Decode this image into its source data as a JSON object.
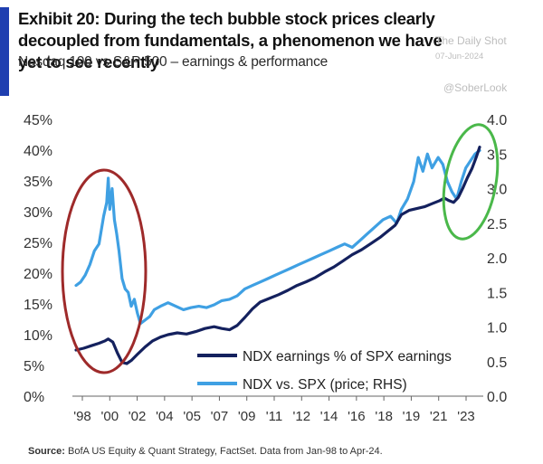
{
  "header": {
    "title": "Exhibit 20: During the tech bubble stock prices clearly decoupled from fundamentals, a phenomenon we have yet to see recently",
    "subtitle": "Nasdaq 100 vs S&P 500 – earnings & performance"
  },
  "watermark": {
    "site": "The Daily Shot",
    "date": "07-Jun-2024",
    "handle": "@SoberLook"
  },
  "source": {
    "label": "Source:",
    "text": "BofA US Equity & Quant Strategy, FactSet. Data from Jan-98 to Apr-24."
  },
  "colors": {
    "accent": "#1f3fb0",
    "earnings": "#14215e",
    "price": "#3fa0e3",
    "circle_left": "#9e2a2a",
    "circle_right": "#4ab84a"
  },
  "chart_data": {
    "type": "line",
    "x_ticks": [
      "'98",
      "'00",
      "'02",
      "'04",
      "'05",
      "'07",
      "'09",
      "'11",
      "'12",
      "'14",
      "'16",
      "'18",
      "'19",
      "'21",
      "'23"
    ],
    "y_left_ticks": [
      "0%",
      "5%",
      "10%",
      "15%",
      "20%",
      "25%",
      "30%",
      "35%",
      "40%",
      "45%"
    ],
    "y_right_ticks": [
      "0.0",
      "0.5",
      "1.0",
      "1.5",
      "2.0",
      "2.5",
      "3.0",
      "3.5",
      "4.0"
    ],
    "ylim_left": [
      0,
      45
    ],
    "ylim_right": [
      0,
      4.0
    ],
    "xlim": [
      1998.0,
      2024.3
    ],
    "legend_position": "bottom-right",
    "annotations": [
      "red ellipse around 1998-2002 bubble",
      "green ellipse around 2023-2024"
    ],
    "series": [
      {
        "name": "NDX earnings % of SPX earnings",
        "axis": "left",
        "points": [
          [
            1998.0,
            7.5
          ],
          [
            1998.5,
            7.8
          ],
          [
            1999.0,
            8.2
          ],
          [
            1999.5,
            8.6
          ],
          [
            1999.9,
            9.0
          ],
          [
            2000.1,
            9.3
          ],
          [
            2000.4,
            8.8
          ],
          [
            2000.7,
            7.0
          ],
          [
            2001.0,
            5.5
          ],
          [
            2001.3,
            5.3
          ],
          [
            2001.6,
            5.8
          ],
          [
            2002.0,
            6.8
          ],
          [
            2002.5,
            8.0
          ],
          [
            2003.0,
            9.0
          ],
          [
            2003.5,
            9.6
          ],
          [
            2004.0,
            10.0
          ],
          [
            2004.6,
            10.3
          ],
          [
            2005.2,
            10.1
          ],
          [
            2005.8,
            10.5
          ],
          [
            2006.4,
            11.0
          ],
          [
            2007.0,
            11.3
          ],
          [
            2007.5,
            11.0
          ],
          [
            2008.0,
            10.8
          ],
          [
            2008.5,
            11.5
          ],
          [
            2009.0,
            12.8
          ],
          [
            2009.5,
            14.2
          ],
          [
            2010.0,
            15.3
          ],
          [
            2010.6,
            15.9
          ],
          [
            2011.2,
            16.5
          ],
          [
            2011.8,
            17.2
          ],
          [
            2012.4,
            18.0
          ],
          [
            2013.0,
            18.6
          ],
          [
            2013.6,
            19.3
          ],
          [
            2014.2,
            20.2
          ],
          [
            2014.8,
            21.0
          ],
          [
            2015.4,
            22.0
          ],
          [
            2016.0,
            23.0
          ],
          [
            2016.6,
            23.8
          ],
          [
            2017.2,
            24.8
          ],
          [
            2017.8,
            25.8
          ],
          [
            2018.3,
            26.8
          ],
          [
            2018.8,
            27.8
          ],
          [
            2019.2,
            29.5
          ],
          [
            2019.7,
            30.2
          ],
          [
            2020.2,
            30.5
          ],
          [
            2020.7,
            30.8
          ],
          [
            2021.2,
            31.3
          ],
          [
            2021.7,
            31.8
          ],
          [
            2022.0,
            32.2
          ],
          [
            2022.3,
            31.8
          ],
          [
            2022.6,
            31.5
          ],
          [
            2022.9,
            32.3
          ],
          [
            2023.2,
            33.8
          ],
          [
            2023.5,
            35.5
          ],
          [
            2023.8,
            37.0
          ],
          [
            2024.1,
            39.0
          ],
          [
            2024.3,
            40.5
          ]
        ]
      },
      {
        "name": "NDX vs. SPX (price; RHS)",
        "axis": "right",
        "points": [
          [
            1998.0,
            1.6
          ],
          [
            1998.3,
            1.65
          ],
          [
            1998.6,
            1.75
          ],
          [
            1998.9,
            1.9
          ],
          [
            1999.2,
            2.1
          ],
          [
            1999.5,
            2.2
          ],
          [
            1999.8,
            2.6
          ],
          [
            2000.0,
            2.8
          ],
          [
            2000.1,
            3.15
          ],
          [
            2000.2,
            2.7
          ],
          [
            2000.35,
            3.0
          ],
          [
            2000.5,
            2.55
          ],
          [
            2000.65,
            2.35
          ],
          [
            2000.8,
            2.1
          ],
          [
            2001.0,
            1.7
          ],
          [
            2001.2,
            1.55
          ],
          [
            2001.4,
            1.5
          ],
          [
            2001.6,
            1.3
          ],
          [
            2001.8,
            1.4
          ],
          [
            2002.0,
            1.2
          ],
          [
            2002.2,
            1.05
          ],
          [
            2002.5,
            1.1
          ],
          [
            2002.8,
            1.15
          ],
          [
            2003.1,
            1.25
          ],
          [
            2003.5,
            1.3
          ],
          [
            2004.0,
            1.35
          ],
          [
            2004.5,
            1.3
          ],
          [
            2005.0,
            1.25
          ],
          [
            2005.5,
            1.28
          ],
          [
            2006.0,
            1.3
          ],
          [
            2006.5,
            1.28
          ],
          [
            2007.0,
            1.32
          ],
          [
            2007.5,
            1.38
          ],
          [
            2008.0,
            1.4
          ],
          [
            2008.5,
            1.45
          ],
          [
            2009.0,
            1.55
          ],
          [
            2009.5,
            1.6
          ],
          [
            2010.0,
            1.65
          ],
          [
            2010.5,
            1.7
          ],
          [
            2011.0,
            1.75
          ],
          [
            2011.5,
            1.8
          ],
          [
            2012.0,
            1.85
          ],
          [
            2012.5,
            1.9
          ],
          [
            2013.0,
            1.95
          ],
          [
            2013.5,
            2.0
          ],
          [
            2014.0,
            2.05
          ],
          [
            2014.5,
            2.1
          ],
          [
            2015.0,
            2.15
          ],
          [
            2015.5,
            2.2
          ],
          [
            2016.0,
            2.15
          ],
          [
            2016.5,
            2.25
          ],
          [
            2017.0,
            2.35
          ],
          [
            2017.5,
            2.45
          ],
          [
            2018.0,
            2.55
          ],
          [
            2018.5,
            2.6
          ],
          [
            2018.9,
            2.5
          ],
          [
            2019.2,
            2.7
          ],
          [
            2019.6,
            2.85
          ],
          [
            2020.0,
            3.1
          ],
          [
            2020.3,
            3.45
          ],
          [
            2020.6,
            3.25
          ],
          [
            2020.9,
            3.5
          ],
          [
            2021.2,
            3.3
          ],
          [
            2021.6,
            3.45
          ],
          [
            2021.9,
            3.35
          ],
          [
            2022.2,
            3.1
          ],
          [
            2022.5,
            2.95
          ],
          [
            2022.8,
            2.85
          ],
          [
            2023.1,
            3.1
          ],
          [
            2023.4,
            3.3
          ],
          [
            2023.7,
            3.4
          ],
          [
            2024.0,
            3.5
          ],
          [
            2024.3,
            3.55
          ]
        ]
      }
    ]
  }
}
